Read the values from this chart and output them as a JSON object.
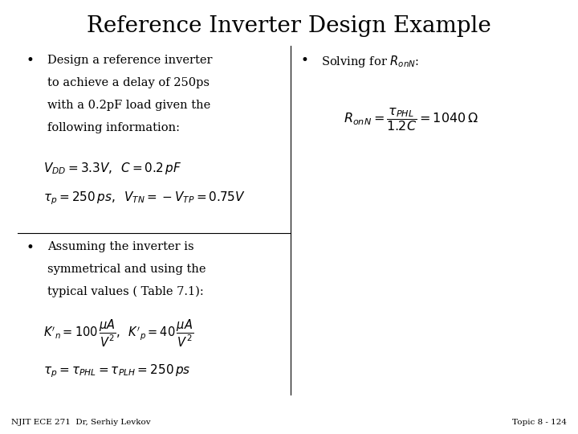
{
  "title": "Reference Inverter Design Example",
  "title_fontsize": 20,
  "bg_color": "#ffffff",
  "text_color": "#000000",
  "bullet1_text": [
    "Design a reference inverter",
    "to achieve a delay of 250ps",
    "with a 0.2pF load given the",
    "following information:"
  ],
  "bullet2_text": [
    "Assuming the inverter is",
    "symmetrical and using the",
    "typical values ( Table 7.1):"
  ],
  "footer_left": "NJIT ECE 271  Dr, Serhiy Levkov",
  "footer_right": "Topic 8 - 124"
}
